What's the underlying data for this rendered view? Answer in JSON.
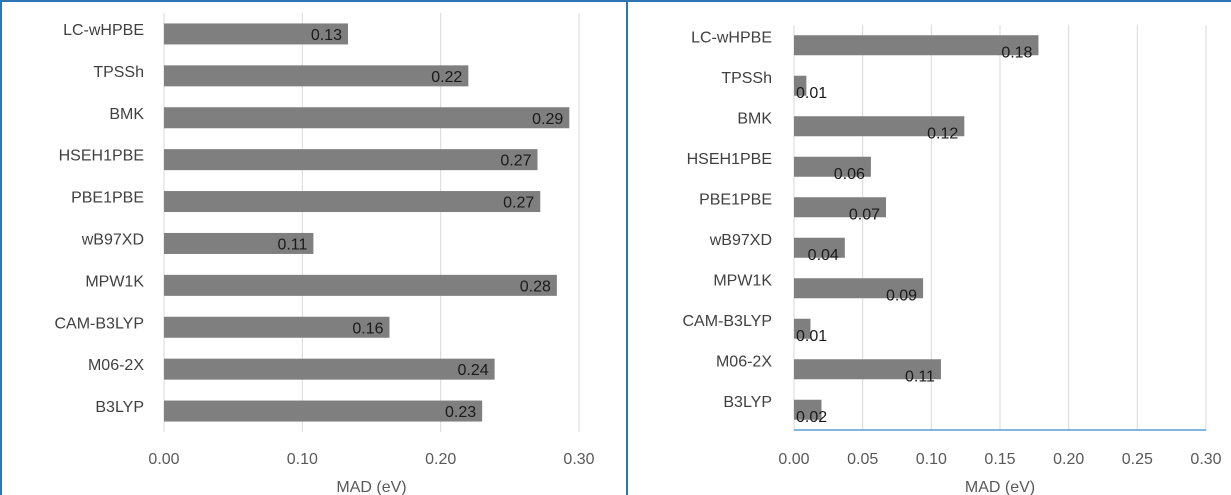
{
  "chart_data": [
    {
      "type": "bar",
      "orientation": "horizontal",
      "categories": [
        "LC-wHPBE",
        "TPSSh",
        "BMK",
        "HSEH1PBE",
        "PBE1PBE",
        "wB97XD",
        "MPW1K",
        "CAM-B3LYP",
        "M06-2X",
        "B3LYP"
      ],
      "values": [
        0.133,
        0.22,
        0.293,
        0.27,
        0.272,
        0.108,
        0.284,
        0.163,
        0.239,
        0.23
      ],
      "data_labels": [
        "0.13",
        "0.22",
        "0.29",
        "0.27",
        "0.27",
        "0.11",
        "0.28",
        "0.16",
        "0.24",
        "0.23"
      ],
      "xlim": [
        0,
        0.3
      ],
      "xticks": [
        "0.00",
        "0.10",
        "0.20",
        "0.30"
      ],
      "xlabel": "MAD (eV)",
      "ylabel": "",
      "title": "",
      "grid": "vertical",
      "bar_color": "#7f7f7f"
    },
    {
      "type": "bar",
      "orientation": "horizontal",
      "categories": [
        "LC-wHPBE",
        "TPSSh",
        "BMK",
        "HSEH1PBE",
        "PBE1PBE",
        "wB97XD",
        "MPW1K",
        "CAM-B3LYP",
        "M06-2X",
        "B3LYP"
      ],
      "values": [
        0.178,
        0.009,
        0.124,
        0.056,
        0.067,
        0.037,
        0.094,
        0.012,
        0.107,
        0.02
      ],
      "data_labels": [
        "0.18",
        "0.01",
        "0.12",
        "0.06",
        "0.07",
        "0.04",
        "0.09",
        "0.01",
        "0.11",
        "0.02"
      ],
      "xlim": [
        0,
        0.3
      ],
      "xticks": [
        "0.00",
        "0.05",
        "0.10",
        "0.15",
        "0.20",
        "0.25",
        "0.30"
      ],
      "xlabel": "MAD (eV)",
      "ylabel": "",
      "title": "",
      "grid": "vertical",
      "bar_color": "#7f7f7f"
    }
  ]
}
